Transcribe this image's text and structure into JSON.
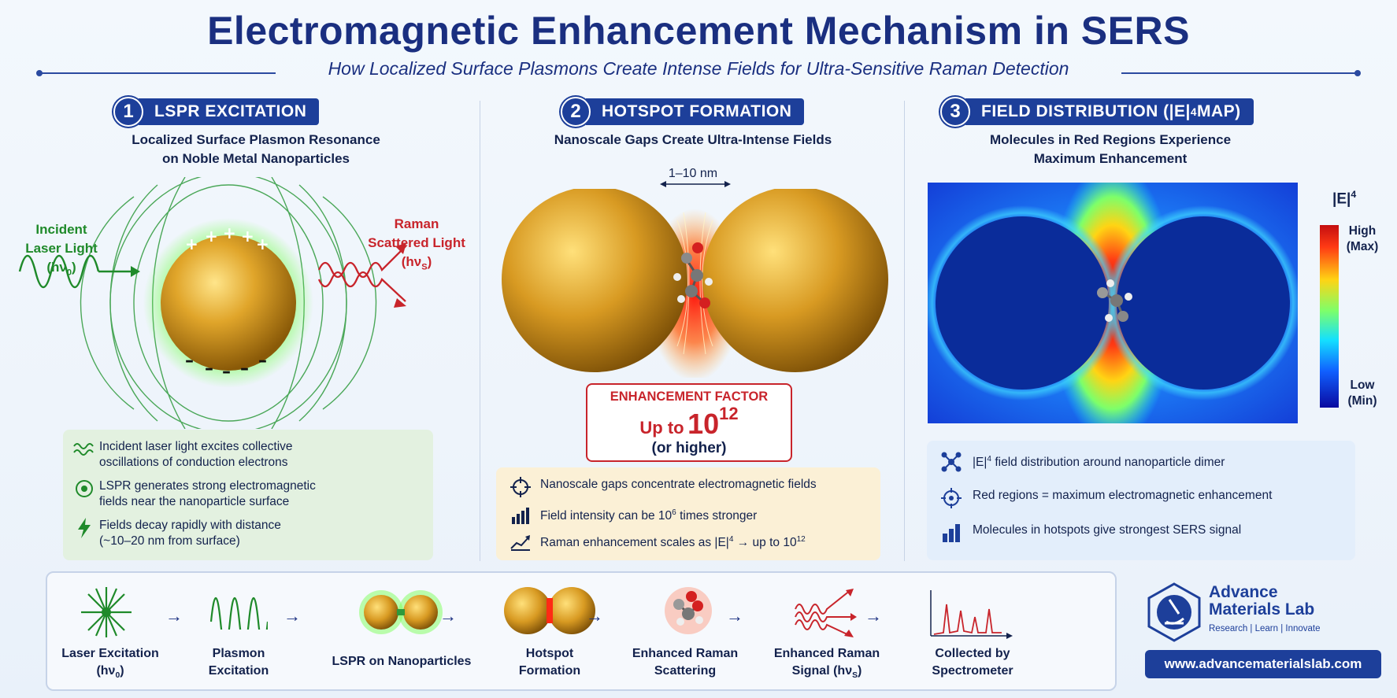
{
  "header": {
    "title": "Electromagnetic Enhancement Mechanism in SERS",
    "subtitle": "How Localized Surface Plasmons Create Intense Fields for Ultra-Sensitive Raman Detection"
  },
  "section1": {
    "number": "1",
    "label": "LSPR EXCITATION",
    "subtitle_line1": "Localized Surface Plasmon Resonance",
    "subtitle_line2": "on Noble Metal Nanoparticles",
    "incident_line1": "Incident",
    "incident_line2": "Laser Light",
    "incident_formula": "(hν",
    "incident_sub": "0",
    "raman_line1": "Raman",
    "raman_line2": "Scattered Light",
    "raman_formula": "(hν",
    "raman_sub": "S",
    "items": [
      {
        "icon": "wave-icon",
        "line1": "Incident laser light excites collective",
        "line2": "oscillations of conduction electrons"
      },
      {
        "icon": "target-icon",
        "line1": "LSPR generates strong electromagnetic",
        "line2": "fields near the nanoparticle surface"
      },
      {
        "icon": "lightning-icon",
        "line1": "Fields decay rapidly with distance",
        "line2": "(~10–20 nm from surface)"
      }
    ]
  },
  "section2": {
    "number": "2",
    "label": "HOTSPOT FORMATION",
    "subtitle": "Nanoscale Gaps Create Ultra-Intense Fields",
    "gap_label": "1–10 nm",
    "enhancement": {
      "title": "ENHANCEMENT FACTOR",
      "prefix": "Up to",
      "base": "10",
      "exp": "12",
      "note": "(or higher)"
    },
    "items": [
      {
        "icon": "crosshair-icon",
        "text": "Nanoscale gaps concentrate electromagnetic fields"
      },
      {
        "icon": "bar-chart-icon",
        "text": "Field intensity can be 10",
        "sup": "6",
        "text_after": " times stronger"
      },
      {
        "icon": "trend-chart-icon",
        "text": "Raman enhancement scales as |E|",
        "sup": "4",
        "text_after": " → up to 10",
        "sup2": "12"
      }
    ]
  },
  "section3": {
    "number": "3",
    "label": "FIELD DISTRIBUTION (|E|",
    "label_sup": "4",
    "label_end": " MAP)",
    "subtitle_line1": "Molecules in Red Regions Experience",
    "subtitle_line2": "Maximum Enhancement",
    "legend": {
      "title": "|E|",
      "title_sup": "4",
      "high_line1": "High",
      "high_line2": "(Max)",
      "low_line1": "Low",
      "low_line2": "(Min)"
    },
    "items": [
      {
        "icon": "molecule-icon",
        "text": "|E|",
        "sup": "4",
        "text_after": " field distribution around nanoparticle dimer"
      },
      {
        "icon": "crosshair-icon",
        "text": "Red regions = maximum electromagnetic enhancement"
      },
      {
        "icon": "bar-chart-icon",
        "text": "Molecules in hotspots give strongest SERS signal"
      }
    ]
  },
  "workflow": {
    "steps": [
      {
        "line1": "Laser Excitation",
        "line2": "(hν",
        "sub": "0",
        "line2_end": ")"
      },
      {
        "line1": "Plasmon",
        "line2": "Excitation"
      },
      {
        "line1": "LSPR on Nanoparticles",
        "line2": ""
      },
      {
        "line1": "Hotspot",
        "line2": "Formation"
      },
      {
        "line1": "Enhanced Raman",
        "line2": "Scattering"
      },
      {
        "line1": "Enhanced Raman",
        "line2": "Signal (hν",
        "sub": "S",
        "line2_end": ")"
      },
      {
        "line1": "Collected by",
        "line2": "Spectrometer"
      }
    ],
    "arrow": "→"
  },
  "brand": {
    "name_line1": "Advance",
    "name_line2": "Materials Lab",
    "tagline": "Research  |  Learn  |  Innovate",
    "url": "www.advancematerialslab.com"
  },
  "colors": {
    "navy": "#1d3f9a",
    "gold": "#d4a020",
    "green": "#1f8a2a",
    "red": "#c8242b"
  }
}
